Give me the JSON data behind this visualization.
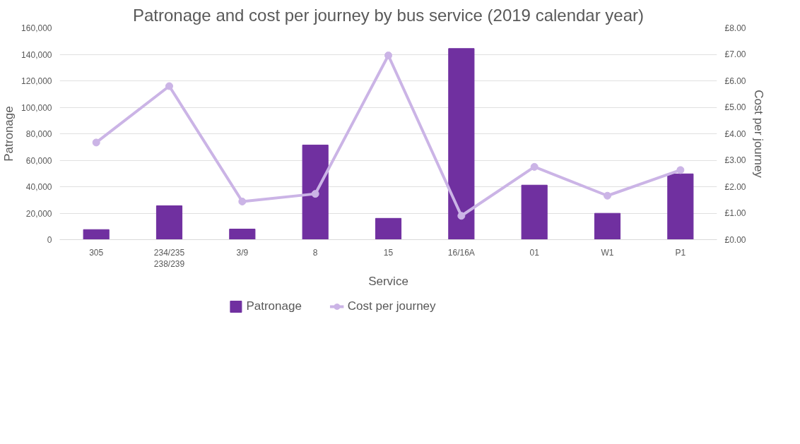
{
  "chart_data": {
    "type": "bar",
    "title": "Patronage and cost per journey by bus service (2019 calendar year)",
    "xlabel": "Service",
    "ylabel": "Patronage",
    "y2label": "Cost per journey",
    "categories": [
      "305",
      "234/235\n238/239",
      "3/9",
      "8",
      "15",
      "16/16A",
      "01",
      "W1",
      "P1"
    ],
    "series": [
      {
        "name": "Patronage",
        "color": "#7030a0",
        "values": [
          7600,
          25600,
          8000,
          71500,
          16100,
          144400,
          41200,
          19900,
          49700
        ]
      },
      {
        "name": "Cost per journey",
        "type": "line",
        "axis": "y2",
        "color": "#cbb4e6",
        "marker": "circle",
        "values": [
          3.67,
          5.8,
          1.44,
          1.73,
          6.96,
          0.9,
          2.75,
          1.66,
          2.63
        ]
      }
    ],
    "ylim": [
      0,
      160000
    ],
    "yticks": [
      {
        "value": 0,
        "label": "0"
      },
      {
        "value": 20000,
        "label": "20,000"
      },
      {
        "value": 40000,
        "label": "40,000"
      },
      {
        "value": 60000,
        "label": "60,000"
      },
      {
        "value": 80000,
        "label": "80,000"
      },
      {
        "value": 100000,
        "label": "100,000"
      },
      {
        "value": 120000,
        "label": "120,000"
      },
      {
        "value": 140000,
        "label": "140,000"
      },
      {
        "value": 160000,
        "label": "160,000"
      }
    ],
    "y2lim": [
      0,
      8
    ],
    "y2ticks": [
      {
        "value": 0,
        "label": "£0.00"
      },
      {
        "value": 1,
        "label": "£1.00"
      },
      {
        "value": 2,
        "label": "£2.00"
      },
      {
        "value": 3,
        "label": "£3.00"
      },
      {
        "value": 4,
        "label": "£4.00"
      },
      {
        "value": 5,
        "label": "£5.00"
      },
      {
        "value": 6,
        "label": "£6.00"
      },
      {
        "value": 7,
        "label": "£7.00"
      },
      {
        "value": 8,
        "label": "£8.00"
      }
    ],
    "grid": "y",
    "legend": "bottom"
  }
}
